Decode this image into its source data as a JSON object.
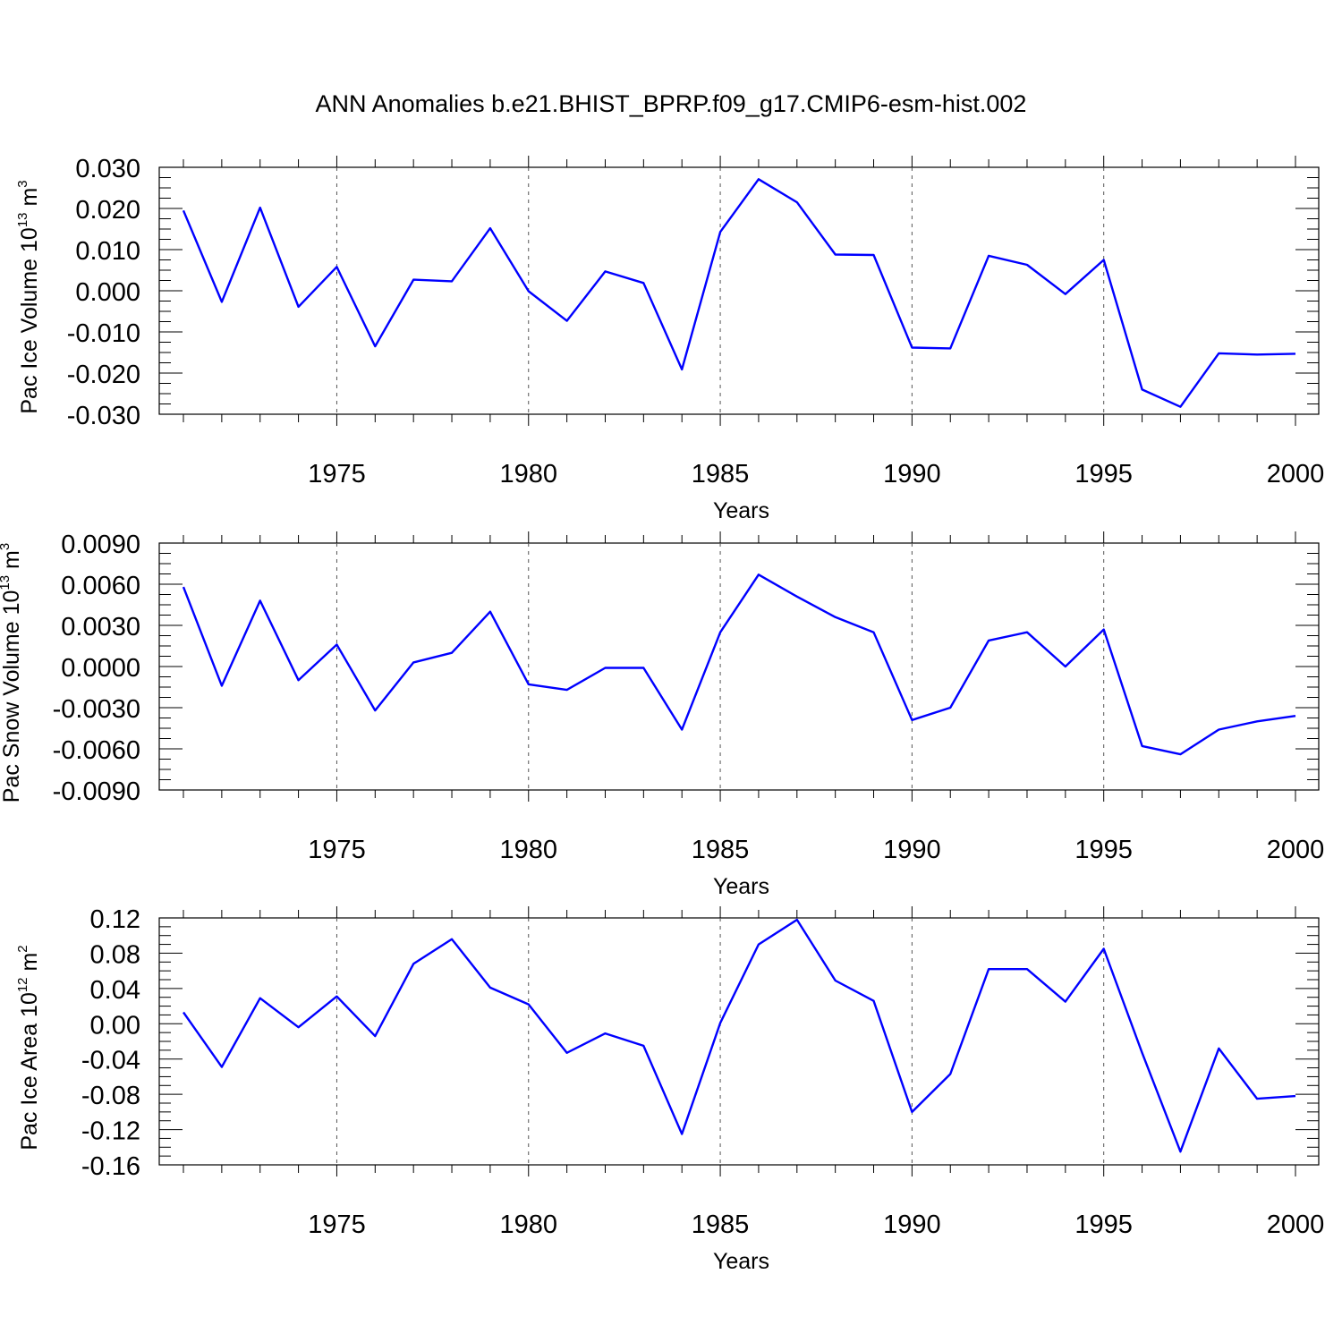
{
  "title": "ANN Anomalies b.e21.BHIST_BPRP.f09_g17.CMIP6-esm-hist.002",
  "chart_data": [
    {
      "type": "line",
      "ylabel": "Pac Ice Volume 10",
      "ylabel_exp": "13",
      "ylabel_unit": " m",
      "ylabel_unit_exp": "3",
      "xlabel": "Years",
      "xlim": [
        1971,
        2000
      ],
      "ylim": [
        -0.03,
        0.03
      ],
      "yticks": [
        -0.03,
        -0.02,
        -0.01,
        0.0,
        0.01,
        0.02,
        0.03
      ],
      "yticklabels": [
        "-0.030",
        "-0.020",
        "-0.010",
        "0.000",
        "0.010",
        "0.020",
        "0.030"
      ],
      "xticks": [
        1975,
        1980,
        1985,
        1990,
        1995,
        2000
      ],
      "xticklabels": [
        "1975",
        "1980",
        "1985",
        "1990",
        "1995",
        "2000"
      ],
      "x": [
        1971,
        1972,
        1973,
        1974,
        1975,
        1976,
        1977,
        1978,
        1979,
        1980,
        1981,
        1982,
        1983,
        1984,
        1985,
        1986,
        1987,
        1988,
        1989,
        1990,
        1991,
        1992,
        1993,
        1994,
        1995,
        1996,
        1997,
        1998,
        1999,
        2000
      ],
      "values": [
        0.0195,
        -0.0027,
        0.0202,
        -0.0039,
        0.0058,
        -0.0135,
        0.0027,
        0.0023,
        0.0152,
        -0.0001,
        -0.0073,
        0.0047,
        0.0019,
        -0.0191,
        0.0143,
        0.0271,
        0.0215,
        0.0088,
        0.0087,
        -0.0138,
        -0.014,
        0.0085,
        0.0063,
        -0.0008,
        0.0075,
        -0.024,
        -0.0282,
        -0.0152,
        -0.0155,
        -0.0153
      ],
      "color": "#0000ff"
    },
    {
      "type": "line",
      "ylabel": "Pac Snow Volume 10",
      "ylabel_exp": "13",
      "ylabel_unit": " m",
      "ylabel_unit_exp": "3",
      "xlabel": "Years",
      "xlim": [
        1971,
        2000
      ],
      "ylim": [
        -0.009,
        0.009
      ],
      "yticks": [
        -0.009,
        -0.006,
        -0.003,
        0.0,
        0.003,
        0.006,
        0.009
      ],
      "yticklabels": [
        "-0.0090",
        "-0.0060",
        "-0.0030",
        "0.0000",
        "0.0030",
        "0.0060",
        "0.0090"
      ],
      "xticks": [
        1975,
        1980,
        1985,
        1990,
        1995,
        2000
      ],
      "xticklabels": [
        "1975",
        "1980",
        "1985",
        "1990",
        "1995",
        "2000"
      ],
      "x": [
        1971,
        1972,
        1973,
        1974,
        1975,
        1976,
        1977,
        1978,
        1979,
        1980,
        1981,
        1982,
        1983,
        1984,
        1985,
        1986,
        1987,
        1988,
        1989,
        1990,
        1991,
        1992,
        1993,
        1994,
        1995,
        1996,
        1997,
        1998,
        1999,
        2000
      ],
      "values": [
        0.0058,
        -0.0014,
        0.0048,
        -0.001,
        0.0016,
        -0.0032,
        0.0003,
        0.001,
        0.004,
        -0.0013,
        -0.0017,
        -0.0001,
        -0.0001,
        -0.0046,
        0.0025,
        0.0067,
        0.0051,
        0.0036,
        0.0025,
        -0.0039,
        -0.003,
        0.0019,
        0.0025,
        0.0,
        0.0027,
        -0.0058,
        -0.0064,
        -0.0046,
        -0.004,
        -0.0036
      ],
      "color": "#0000ff"
    },
    {
      "type": "line",
      "ylabel": "Pac Ice Area 10",
      "ylabel_exp": "12",
      "ylabel_unit": " m",
      "ylabel_unit_exp": "2",
      "xlabel": "Years",
      "xlim": [
        1971,
        2000
      ],
      "ylim": [
        -0.16,
        0.12
      ],
      "yticks": [
        -0.16,
        -0.12,
        -0.08,
        -0.04,
        0.0,
        0.04,
        0.08,
        0.12
      ],
      "yticklabels": [
        "-0.16",
        "-0.12",
        "-0.08",
        "-0.04",
        "0.00",
        "0.04",
        "0.08",
        "0.12"
      ],
      "xticks": [
        1975,
        1980,
        1985,
        1990,
        1995,
        2000
      ],
      "xticklabels": [
        "1975",
        "1980",
        "1985",
        "1990",
        "1995",
        "2000"
      ],
      "x": [
        1971,
        1972,
        1973,
        1974,
        1975,
        1976,
        1977,
        1978,
        1979,
        1980,
        1981,
        1982,
        1983,
        1984,
        1985,
        1986,
        1987,
        1988,
        1989,
        1990,
        1991,
        1992,
        1993,
        1994,
        1995,
        1996,
        1997,
        1998,
        1999,
        2000
      ],
      "values": [
        0.013,
        -0.049,
        0.029,
        -0.004,
        0.031,
        -0.014,
        0.068,
        0.096,
        0.041,
        0.022,
        -0.033,
        -0.011,
        -0.025,
        -0.125,
        0.001,
        0.09,
        0.118,
        0.049,
        0.026,
        -0.1,
        -0.057,
        0.062,
        0.062,
        0.025,
        0.085,
        -0.033,
        -0.145,
        -0.028,
        -0.085,
        -0.082
      ],
      "color": "#0000ff"
    }
  ]
}
